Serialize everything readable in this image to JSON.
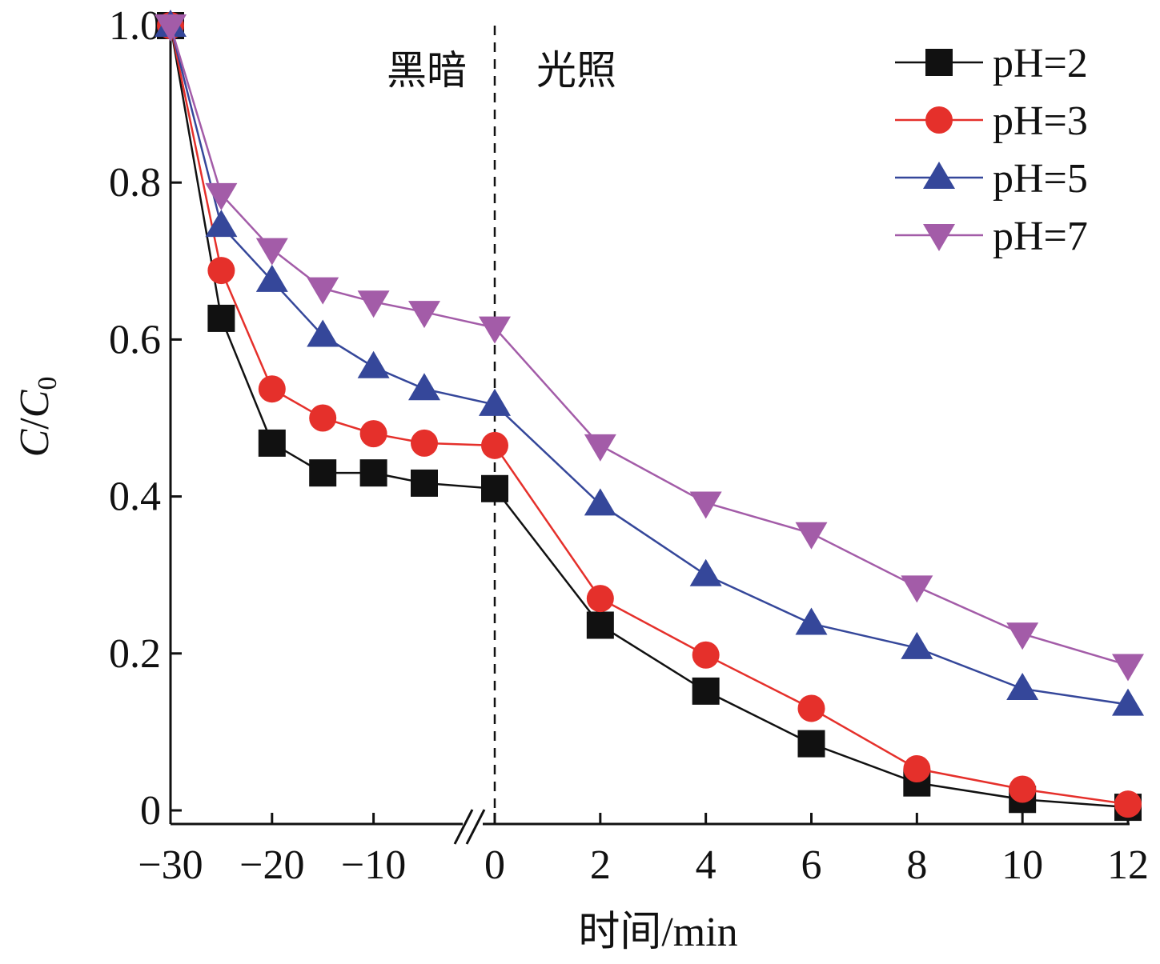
{
  "chart_data": {
    "type": "line",
    "title": "",
    "xlabel": "时间/min",
    "ylabel_main": "C",
    "ylabel_sep": "/",
    "ylabel_den": "C",
    "ylabel_sub": "0",
    "ylim": [
      0,
      1.0
    ],
    "y_ticks": [
      0,
      0.2,
      0.4,
      0.6,
      0.8,
      1.0
    ],
    "y_tick_labels": [
      "0",
      "0.2",
      "0.4",
      "0.6",
      "0.8",
      "1.0"
    ],
    "x_ticks": [
      -30,
      -20,
      -10,
      0,
      2,
      4,
      6,
      8,
      10,
      12
    ],
    "x_tick_labels": [
      "−30",
      "−20",
      "−10",
      "0",
      "2",
      "4",
      "6",
      "8",
      "10",
      "12"
    ],
    "x_axis_break": "between −5 and 0",
    "dark_light_divider_x": 0,
    "region_labels": {
      "dark": "黑暗",
      "light": "光照"
    },
    "legend_placement": "top-right",
    "x": [
      -30,
      -25,
      -20,
      -15,
      -10,
      -5,
      0,
      2,
      4,
      6,
      8,
      10,
      12
    ],
    "series": [
      {
        "name": "pH=2",
        "marker": "square",
        "color": "#111111",
        "values": [
          1.0,
          0.627,
          0.468,
          0.43,
          0.43,
          0.417,
          0.41,
          0.236,
          0.152,
          0.085,
          0.035,
          0.014,
          0.004
        ]
      },
      {
        "name": "pH=3",
        "marker": "circle",
        "color": "#e5302b",
        "values": [
          1.0,
          0.688,
          0.537,
          0.5,
          0.48,
          0.468,
          0.465,
          0.27,
          0.198,
          0.13,
          0.053,
          0.027,
          0.008
        ]
      },
      {
        "name": "pH=5",
        "marker": "triangle-up",
        "color": "#35479a",
        "values": [
          1.0,
          0.745,
          0.675,
          0.605,
          0.565,
          0.537,
          0.517,
          0.39,
          0.3,
          0.238,
          0.207,
          0.155,
          0.135
        ]
      },
      {
        "name": "pH=7",
        "marker": "triangle-down",
        "color": "#a35ca8",
        "values": [
          1.0,
          0.785,
          0.715,
          0.665,
          0.648,
          0.635,
          0.615,
          0.465,
          0.392,
          0.353,
          0.285,
          0.225,
          0.185
        ]
      }
    ]
  }
}
